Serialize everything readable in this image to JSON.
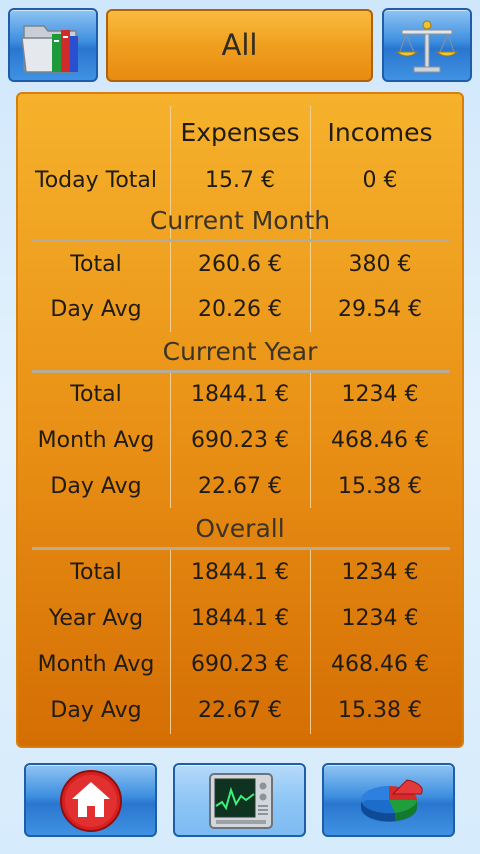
{
  "header": {
    "filter_label": "All"
  },
  "table": {
    "col_expenses": "Expenses",
    "col_incomes": "Incomes",
    "today": {
      "label": "Today Total",
      "expenses": "15.7 €",
      "incomes": "0 €"
    },
    "current_month": {
      "title": "Current Month",
      "rows": [
        {
          "label": "Total",
          "expenses": "260.6 €",
          "incomes": "380 €"
        },
        {
          "label": "Day Avg",
          "expenses": "20.26 €",
          "incomes": "29.54 €"
        }
      ]
    },
    "current_year": {
      "title": "Current Year",
      "rows": [
        {
          "label": "Total",
          "expenses": "1844.1 €",
          "incomes": "1234 €"
        },
        {
          "label": "Month Avg",
          "expenses": "690.23 €",
          "incomes": "468.46 €"
        },
        {
          "label": "Day Avg",
          "expenses": "22.67 €",
          "incomes": "15.38 €"
        }
      ]
    },
    "overall": {
      "title": "Overall",
      "rows": [
        {
          "label": "Total",
          "expenses": "1844.1 €",
          "incomes": "1234 €"
        },
        {
          "label": "Year Avg",
          "expenses": "1844.1 €",
          "incomes": "1234 €"
        },
        {
          "label": "Month Avg",
          "expenses": "690.23 €",
          "incomes": "468.46 €"
        },
        {
          "label": "Day Avg",
          "expenses": "22.67 €",
          "incomes": "15.38 €"
        }
      ]
    }
  },
  "icons": {
    "top_left": "folder-books-icon",
    "top_right": "balance-scale-icon",
    "bottom_left": "home-icon",
    "bottom_center": "monitor-chart-icon",
    "bottom_right": "pie-chart-icon"
  },
  "colors": {
    "panel_orange": "#f0a020",
    "button_blue": "#3d8ee0",
    "background": "#d8ecfc"
  }
}
